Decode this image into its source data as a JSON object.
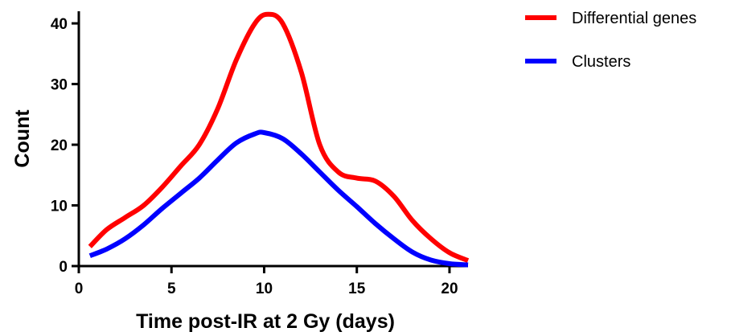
{
  "chart_data": {
    "type": "line",
    "xlabel": "Time post-IR at 2 Gy (days)",
    "ylabel": "Count",
    "xlim": [
      0,
      21
    ],
    "ylim": [
      0,
      42
    ],
    "xticks": [
      0,
      5,
      10,
      15,
      20
    ],
    "yticks": [
      0,
      10,
      20,
      30,
      40
    ],
    "grid": false,
    "legend_position": "top-right",
    "series": [
      {
        "name": "Differential genes",
        "color": "#ff0000",
        "x": [
          0.6,
          1.5,
          2.5,
          3.5,
          4.5,
          5.5,
          6.5,
          7.5,
          8.5,
          9.5,
          10.2,
          11,
          12,
          13,
          14,
          15,
          16,
          17,
          18,
          19,
          20,
          21
        ],
        "y": [
          3.2,
          6,
          8,
          10,
          13,
          16.5,
          20,
          26,
          34,
          40,
          41.5,
          40,
          32,
          20,
          15.5,
          14.5,
          14,
          11.5,
          7.5,
          4.5,
          2.2,
          0.9
        ]
      },
      {
        "name": "Clusters",
        "color": "#0000ff",
        "x": [
          0.6,
          1.5,
          2.5,
          3.5,
          4.5,
          5.5,
          6.5,
          7.5,
          8.5,
          9.5,
          10,
          11,
          12,
          13,
          14,
          15,
          16,
          17,
          18,
          19,
          20,
          21
        ],
        "y": [
          1.7,
          2.8,
          4.5,
          6.8,
          9.5,
          12,
          14.5,
          17.5,
          20.3,
          21.8,
          22,
          21,
          18.5,
          15.5,
          12.5,
          9.8,
          7,
          4.5,
          2.3,
          1,
          0.4,
          0.2
        ]
      }
    ]
  }
}
